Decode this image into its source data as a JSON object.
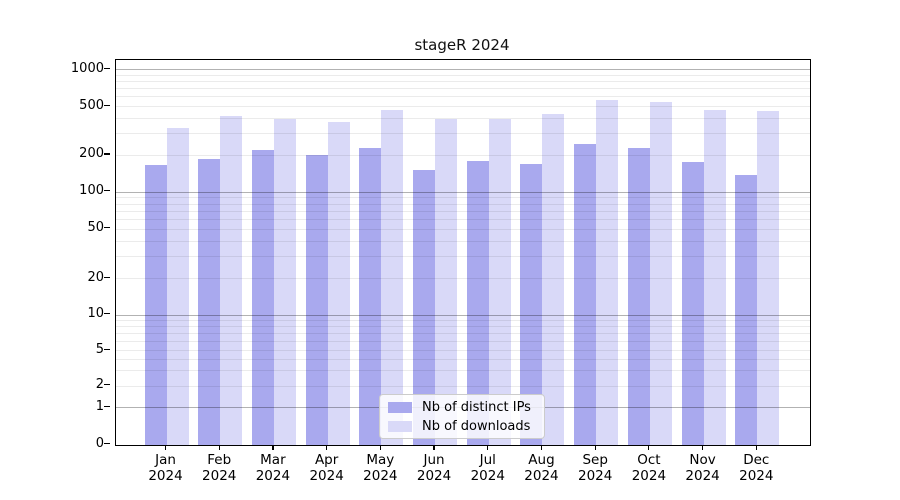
{
  "title": "stageR 2024",
  "legend": {
    "items": [
      {
        "label": "Nb of distinct IPs",
        "color": "#a9a9ee"
      },
      {
        "label": "Nb of downloads",
        "color": "#d9d9f8"
      }
    ]
  },
  "y_axis": {
    "tick_labels": [
      "1000",
      "500",
      "200",
      "100",
      "50",
      "20",
      "10",
      "5",
      "2",
      "1",
      "0"
    ],
    "tick_values": [
      1000,
      500,
      200,
      100,
      50,
      20,
      10,
      5,
      2,
      1,
      0
    ]
  },
  "x_axis": {
    "months": [
      {
        "line1": "Jan",
        "line2": "2024"
      },
      {
        "line1": "Feb",
        "line2": "2024"
      },
      {
        "line1": "Mar",
        "line2": "2024"
      },
      {
        "line1": "Apr",
        "line2": "2024"
      },
      {
        "line1": "May",
        "line2": "2024"
      },
      {
        "line1": "Jun",
        "line2": "2024"
      },
      {
        "line1": "Jul",
        "line2": "2024"
      },
      {
        "line1": "Aug",
        "line2": "2024"
      },
      {
        "line1": "Sep",
        "line2": "2024"
      },
      {
        "line1": "Oct",
        "line2": "2024"
      },
      {
        "line1": "Nov",
        "line2": "2024"
      },
      {
        "line1": "Dec",
        "line2": "2024"
      }
    ]
  },
  "chart_data": {
    "type": "bar",
    "title": "stageR 2024",
    "categories": [
      "Jan 2024",
      "Feb 2024",
      "Mar 2024",
      "Apr 2024",
      "May 2024",
      "Jun 2024",
      "Jul 2024",
      "Aug 2024",
      "Sep 2024",
      "Oct 2024",
      "Nov 2024",
      "Dec 2024"
    ],
    "series": [
      {
        "name": "Nb of distinct IPs",
        "color": "#a9a9ee",
        "values": [
          165,
          185,
          220,
          200,
          228,
          150,
          178,
          168,
          245,
          228,
          175,
          136
        ]
      },
      {
        "name": "Nb of downloads",
        "color": "#d9d9f8",
        "values": [
          330,
          415,
          395,
          370,
          465,
          390,
          390,
          435,
          560,
          545,
          465,
          455
        ]
      }
    ],
    "yscale": "symlog",
    "ylim": [
      0,
      1000
    ],
    "yticks": [
      0,
      1,
      2,
      5,
      10,
      20,
      50,
      100,
      200,
      500,
      1000
    ],
    "grid": true,
    "grid_on_top": true,
    "legend_position": "lower center"
  }
}
